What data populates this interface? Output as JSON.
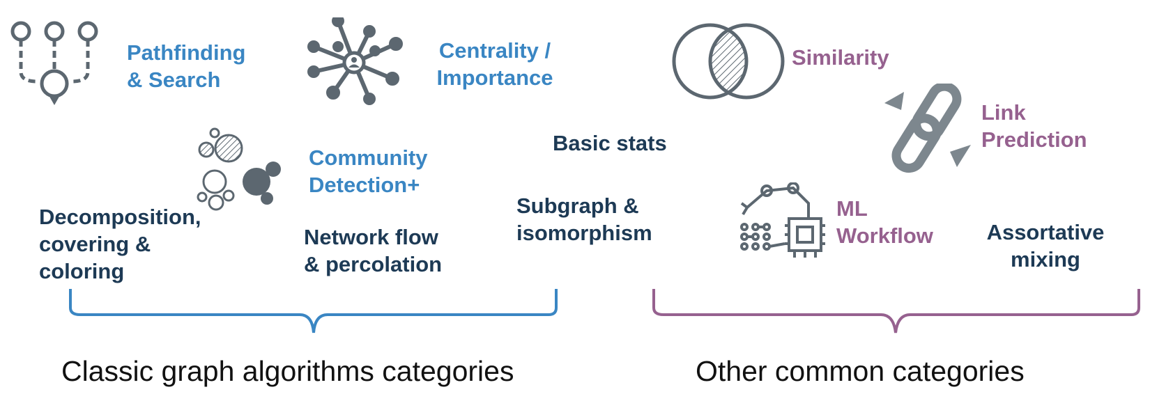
{
  "categories": {
    "pathfinding": "Pathfinding\n& Search",
    "centrality": "Centrality /\nImportance",
    "community": "Community\nDetection+",
    "decomposition": "Decomposition,\ncovering &\ncoloring",
    "network_flow": "Network flow\n& percolation",
    "basic_stats": "Basic stats",
    "subgraph": "Subgraph &\nisomorphism",
    "similarity": "Similarity",
    "link_prediction": "Link\nPrediction",
    "ml_workflow": "ML\nWorkflow",
    "assortative": "Assortative\nmixing"
  },
  "groups": {
    "classic": "Classic graph algorithms categories",
    "other": "Other common categories"
  },
  "colors": {
    "classic_accent": "#3a86c3",
    "other_accent": "#96618f",
    "neutral_text": "#1d3a55",
    "icon_gray": "#5c6770"
  },
  "icons": [
    "pathfinding-icon",
    "centrality-icon",
    "community-icon",
    "similarity-icon",
    "link-icon",
    "ml-robot-icon"
  ]
}
